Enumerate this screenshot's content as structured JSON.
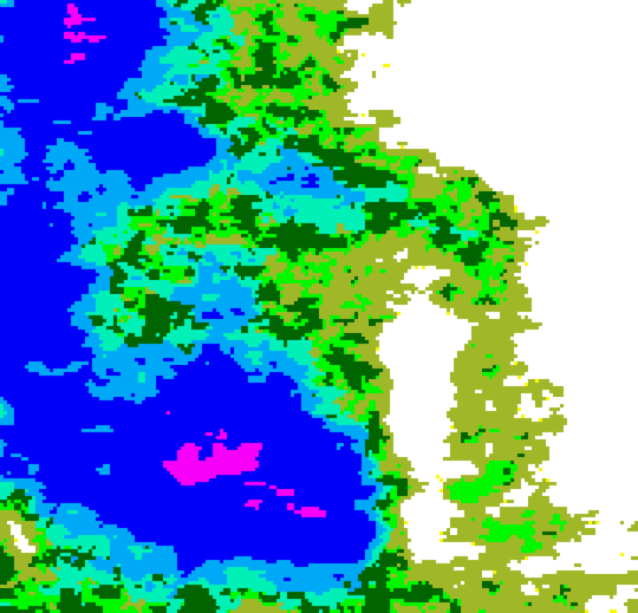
{
  "map": {
    "type": "classified-raster",
    "palette": {
      "none": "#ffffff",
      "class1": "#a0b828",
      "class2": "#00f800",
      "class3": "#006400",
      "class4": "#00f0b8",
      "class5": "#00a8f8",
      "class6": "#0000f8",
      "class7": "#f800f8",
      "edge": "#f8f800"
    }
  }
}
